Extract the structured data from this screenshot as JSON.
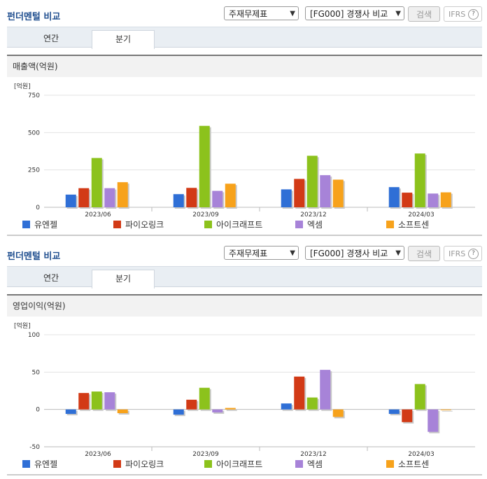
{
  "panels": [
    {
      "title": "펀더멘털 비교",
      "select1": "주재무제표",
      "select2": "[FG000] 경쟁사 비교",
      "search_label": "검색",
      "ifrs_label": "IFRS",
      "ifrs_help": "?",
      "tabs": [
        {
          "label": "연간"
        },
        {
          "label": "분기"
        }
      ],
      "active_tab": "분기",
      "subtitle": "매출액(억원)"
    },
    {
      "title": "펀더멘털 비교",
      "select1": "주재무제표",
      "select2": "[FG000] 경쟁사 비교",
      "search_label": "검색",
      "ifrs_label": "IFRS",
      "ifrs_help": "?",
      "tabs": [
        {
          "label": "연간"
        },
        {
          "label": "분기"
        }
      ],
      "active_tab": "분기",
      "subtitle": "영업이익(억원)"
    }
  ],
  "chart_data": [
    {
      "type": "bar",
      "unit_label": "[억원]",
      "categories": [
        "2023/06",
        "2023/09",
        "2023/12",
        "2024/03"
      ],
      "yticks": [
        0,
        250,
        500,
        750
      ],
      "ylim": [
        0,
        750
      ],
      "grid": true,
      "legend_position": "bottom",
      "series": [
        {
          "name": "유엔젤",
          "color": "#2f6fd6",
          "values": [
            85,
            88,
            120,
            135
          ]
        },
        {
          "name": "파이오링크",
          "color": "#d23a16",
          "values": [
            128,
            130,
            190,
            98
          ]
        },
        {
          "name": "아이크래프트",
          "color": "#8cc21c",
          "values": [
            330,
            545,
            345,
            360
          ]
        },
        {
          "name": "엑셈",
          "color": "#a783d8",
          "values": [
            128,
            110,
            215,
            92
          ]
        },
        {
          "name": "소프트센",
          "color": "#f7a21b",
          "values": [
            168,
            158,
            185,
            100
          ]
        }
      ]
    },
    {
      "type": "bar",
      "unit_label": "[억원]",
      "categories": [
        "2023/06",
        "2023/09",
        "2023/12",
        "2024/03"
      ],
      "yticks": [
        -50,
        0,
        50,
        100
      ],
      "ylim": [
        -50,
        100
      ],
      "grid": true,
      "legend_position": "bottom",
      "series": [
        {
          "name": "유엔젤",
          "color": "#2f6fd6",
          "values": [
            -6,
            -7,
            8,
            -6
          ]
        },
        {
          "name": "파이오링크",
          "color": "#d23a16",
          "values": [
            22,
            13,
            44,
            -17
          ]
        },
        {
          "name": "아이크래프트",
          "color": "#8cc21c",
          "values": [
            24,
            29,
            16,
            34
          ]
        },
        {
          "name": "엑셈",
          "color": "#a783d8",
          "values": [
            23,
            -4,
            53,
            -30
          ]
        },
        {
          "name": "소프트센",
          "color": "#f7a21b",
          "values": [
            -5,
            2,
            -10,
            0
          ]
        }
      ]
    }
  ]
}
